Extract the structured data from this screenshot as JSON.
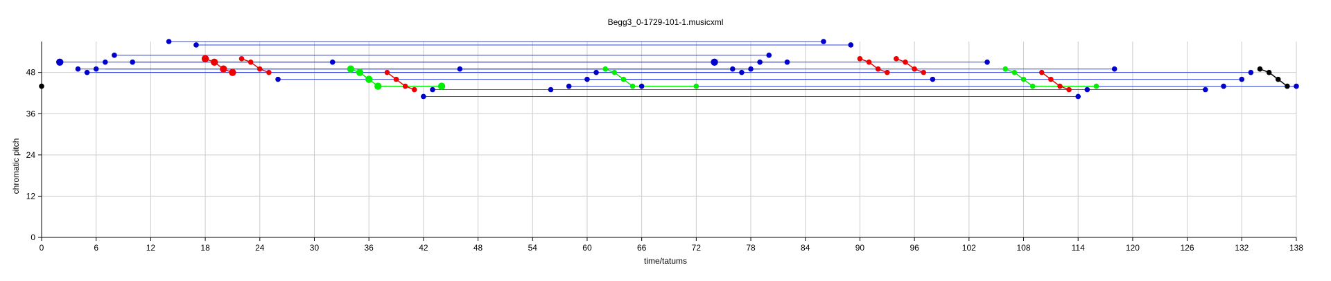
{
  "chart_data": {
    "type": "scatter",
    "title": "Begg3_0-1729-101-1.musicxml",
    "xlabel": "time/tatums",
    "ylabel": "chromatic pitch",
    "xlim": [
      0,
      138
    ],
    "ylim": [
      0,
      57
    ],
    "xticks": [
      0,
      6,
      12,
      18,
      24,
      30,
      36,
      42,
      48,
      54,
      60,
      66,
      72,
      78,
      84,
      90,
      96,
      102,
      108,
      114,
      120,
      126,
      132,
      138
    ],
    "yticks": [
      0,
      12,
      24,
      36,
      48
    ],
    "grid": true,
    "colors": {
      "blue": "#0000cc",
      "red": "#ee0000",
      "green": "#00ee00",
      "black": "#000000",
      "grid": "#cccccc",
      "line_blue": "#3344dd"
    },
    "segments": [
      {
        "color": "blue",
        "x1": 2,
        "x2": 74,
        "y": 51
      },
      {
        "color": "blue",
        "x1": 74,
        "x2": 104,
        "y": 51
      },
      {
        "color": "blue",
        "x1": 14,
        "x2": 86,
        "y": 57
      },
      {
        "color": "blue",
        "x1": 17,
        "x2": 89,
        "y": 56
      },
      {
        "color": "blue",
        "x1": 8,
        "x2": 80,
        "y": 53
      },
      {
        "color": "blue",
        "x1": 10,
        "x2": 82,
        "y": 51
      },
      {
        "color": "blue",
        "x1": 7,
        "x2": 79,
        "y": 49
      },
      {
        "color": "blue",
        "x1": 46,
        "x2": 118,
        "y": 49
      },
      {
        "color": "blue",
        "x1": 4,
        "x2": 76,
        "y": 49
      },
      {
        "color": "blue",
        "x1": 6,
        "x2": 78,
        "y": 48
      },
      {
        "color": "blue",
        "x1": 5,
        "x2": 77,
        "y": 48
      },
      {
        "color": "blue",
        "x1": 61,
        "x2": 133,
        "y": 48
      },
      {
        "color": "blue",
        "x1": 26,
        "x2": 98,
        "y": 46
      },
      {
        "color": "blue",
        "x1": 60,
        "x2": 132,
        "y": 46
      },
      {
        "color": "blue",
        "x1": 58,
        "x2": 130,
        "y": 44
      },
      {
        "color": "blue",
        "x1": 66,
        "x2": 138,
        "y": 44
      },
      {
        "color": "blue",
        "x1": 43,
        "x2": 115,
        "y": 43
      },
      {
        "color": "blue",
        "x1": 56,
        "x2": 128,
        "y": 43
      },
      {
        "color": "blue",
        "x1": 42,
        "x2": 114,
        "y": 41
      },
      {
        "color": "green",
        "x1": 37,
        "x2": 44,
        "y": 44
      },
      {
        "color": "green",
        "x1": 65,
        "x2": 72,
        "y": 44
      },
      {
        "color": "green",
        "x1": 109,
        "x2": 116,
        "y": 44
      }
    ],
    "connectors": [
      {
        "color": "red",
        "points": [
          [
            18,
            52
          ],
          [
            19,
            51
          ],
          [
            20,
            49
          ],
          [
            21,
            48
          ]
        ]
      },
      {
        "color": "red",
        "points": [
          [
            22,
            52
          ],
          [
            23,
            51
          ],
          [
            24,
            49
          ],
          [
            25,
            48
          ]
        ]
      },
      {
        "color": "green",
        "points": [
          [
            34,
            49
          ],
          [
            35,
            48
          ],
          [
            36,
            46
          ],
          [
            37,
            44
          ]
        ]
      },
      {
        "color": "red",
        "points": [
          [
            38,
            48
          ],
          [
            39,
            46
          ],
          [
            40,
            44
          ],
          [
            41,
            43
          ]
        ]
      },
      {
        "color": "green",
        "points": [
          [
            62,
            49
          ],
          [
            63,
            48
          ],
          [
            64,
            46
          ],
          [
            65,
            44
          ]
        ]
      },
      {
        "color": "red",
        "points": [
          [
            90,
            52
          ],
          [
            91,
            51
          ],
          [
            92,
            49
          ],
          [
            93,
            48
          ]
        ]
      },
      {
        "color": "red",
        "points": [
          [
            94,
            52
          ],
          [
            95,
            51
          ],
          [
            96,
            49
          ],
          [
            97,
            48
          ]
        ]
      },
      {
        "color": "green",
        "points": [
          [
            106,
            49
          ],
          [
            107,
            48
          ],
          [
            108,
            46
          ],
          [
            109,
            44
          ]
        ]
      },
      {
        "color": "red",
        "points": [
          [
            110,
            48
          ],
          [
            111,
            46
          ],
          [
            112,
            44
          ],
          [
            113,
            43
          ]
        ]
      },
      {
        "color": "black",
        "points": [
          [
            134,
            49
          ],
          [
            135,
            48
          ],
          [
            136,
            46
          ],
          [
            137,
            44
          ]
        ]
      }
    ],
    "points": [
      {
        "x": 0,
        "y": 44,
        "color": "black",
        "size": "small"
      },
      {
        "x": 2,
        "y": 51,
        "color": "blue",
        "size": "large"
      },
      {
        "x": 4,
        "y": 49,
        "color": "blue",
        "size": "small"
      },
      {
        "x": 5,
        "y": 48,
        "color": "blue",
        "size": "small"
      },
      {
        "x": 6,
        "y": 49,
        "color": "blue",
        "size": "small"
      },
      {
        "x": 7,
        "y": 51,
        "color": "blue",
        "size": "small"
      },
      {
        "x": 8,
        "y": 53,
        "color": "blue",
        "size": "small"
      },
      {
        "x": 10,
        "y": 51,
        "color": "blue",
        "size": "small"
      },
      {
        "x": 14,
        "y": 57,
        "color": "blue",
        "size": "small"
      },
      {
        "x": 17,
        "y": 56,
        "color": "blue",
        "size": "small"
      },
      {
        "x": 18,
        "y": 52,
        "color": "red",
        "size": "large"
      },
      {
        "x": 19,
        "y": 51,
        "color": "red",
        "size": "large"
      },
      {
        "x": 20,
        "y": 49,
        "color": "red",
        "size": "large"
      },
      {
        "x": 21,
        "y": 48,
        "color": "red",
        "size": "large"
      },
      {
        "x": 22,
        "y": 52,
        "color": "red",
        "size": "small"
      },
      {
        "x": 23,
        "y": 51,
        "color": "red",
        "size": "small"
      },
      {
        "x": 24,
        "y": 49,
        "color": "red",
        "size": "small"
      },
      {
        "x": 25,
        "y": 48,
        "color": "red",
        "size": "small"
      },
      {
        "x": 26,
        "y": 46,
        "color": "blue",
        "size": "small"
      },
      {
        "x": 32,
        "y": 51,
        "color": "blue",
        "size": "small"
      },
      {
        "x": 34,
        "y": 49,
        "color": "green",
        "size": "large"
      },
      {
        "x": 35,
        "y": 48,
        "color": "green",
        "size": "large"
      },
      {
        "x": 36,
        "y": 46,
        "color": "green",
        "size": "large"
      },
      {
        "x": 37,
        "y": 44,
        "color": "green",
        "size": "large"
      },
      {
        "x": 38,
        "y": 48,
        "color": "red",
        "size": "small"
      },
      {
        "x": 39,
        "y": 46,
        "color": "red",
        "size": "small"
      },
      {
        "x": 40,
        "y": 44,
        "color": "red",
        "size": "small"
      },
      {
        "x": 41,
        "y": 43,
        "color": "red",
        "size": "small"
      },
      {
        "x": 42,
        "y": 41,
        "color": "blue",
        "size": "small"
      },
      {
        "x": 43,
        "y": 43,
        "color": "blue",
        "size": "small"
      },
      {
        "x": 44,
        "y": 44,
        "color": "green",
        "size": "large"
      },
      {
        "x": 46,
        "y": 49,
        "color": "blue",
        "size": "small"
      },
      {
        "x": 56,
        "y": 43,
        "color": "blue",
        "size": "small"
      },
      {
        "x": 58,
        "y": 44,
        "color": "blue",
        "size": "small"
      },
      {
        "x": 60,
        "y": 46,
        "color": "blue",
        "size": "small"
      },
      {
        "x": 61,
        "y": 48,
        "color": "blue",
        "size": "small"
      },
      {
        "x": 62,
        "y": 49,
        "color": "green",
        "size": "small"
      },
      {
        "x": 63,
        "y": 48,
        "color": "green",
        "size": "small"
      },
      {
        "x": 64,
        "y": 46,
        "color": "green",
        "size": "small"
      },
      {
        "x": 65,
        "y": 44,
        "color": "green",
        "size": "small"
      },
      {
        "x": 66,
        "y": 44,
        "color": "blue",
        "size": "small"
      },
      {
        "x": 72,
        "y": 44,
        "color": "green",
        "size": "small"
      },
      {
        "x": 74,
        "y": 51,
        "color": "blue",
        "size": "large"
      },
      {
        "x": 76,
        "y": 49,
        "color": "blue",
        "size": "small"
      },
      {
        "x": 77,
        "y": 48,
        "color": "blue",
        "size": "small"
      },
      {
        "x": 78,
        "y": 49,
        "color": "blue",
        "size": "small"
      },
      {
        "x": 79,
        "y": 51,
        "color": "blue",
        "size": "small"
      },
      {
        "x": 80,
        "y": 53,
        "color": "blue",
        "size": "small"
      },
      {
        "x": 82,
        "y": 51,
        "color": "blue",
        "size": "small"
      },
      {
        "x": 86,
        "y": 57,
        "color": "blue",
        "size": "small"
      },
      {
        "x": 89,
        "y": 56,
        "color": "blue",
        "size": "small"
      },
      {
        "x": 90,
        "y": 52,
        "color": "red",
        "size": "small"
      },
      {
        "x": 91,
        "y": 51,
        "color": "red",
        "size": "small"
      },
      {
        "x": 92,
        "y": 49,
        "color": "red",
        "size": "small"
      },
      {
        "x": 93,
        "y": 48,
        "color": "red",
        "size": "small"
      },
      {
        "x": 94,
        "y": 52,
        "color": "red",
        "size": "small"
      },
      {
        "x": 95,
        "y": 51,
        "color": "red",
        "size": "small"
      },
      {
        "x": 96,
        "y": 49,
        "color": "red",
        "size": "small"
      },
      {
        "x": 97,
        "y": 48,
        "color": "red",
        "size": "small"
      },
      {
        "x": 98,
        "y": 46,
        "color": "blue",
        "size": "small"
      },
      {
        "x": 104,
        "y": 51,
        "color": "blue",
        "size": "small"
      },
      {
        "x": 106,
        "y": 49,
        "color": "green",
        "size": "small"
      },
      {
        "x": 107,
        "y": 48,
        "color": "green",
        "size": "small"
      },
      {
        "x": 108,
        "y": 46,
        "color": "green",
        "size": "small"
      },
      {
        "x": 109,
        "y": 44,
        "color": "green",
        "size": "small"
      },
      {
        "x": 110,
        "y": 48,
        "color": "red",
        "size": "small"
      },
      {
        "x": 111,
        "y": 46,
        "color": "red",
        "size": "small"
      },
      {
        "x": 112,
        "y": 44,
        "color": "red",
        "size": "small"
      },
      {
        "x": 113,
        "y": 43,
        "color": "red",
        "size": "small"
      },
      {
        "x": 114,
        "y": 41,
        "color": "blue",
        "size": "small"
      },
      {
        "x": 115,
        "y": 43,
        "color": "blue",
        "size": "small"
      },
      {
        "x": 116,
        "y": 44,
        "color": "green",
        "size": "small"
      },
      {
        "x": 118,
        "y": 49,
        "color": "blue",
        "size": "small"
      },
      {
        "x": 128,
        "y": 43,
        "color": "blue",
        "size": "small"
      },
      {
        "x": 130,
        "y": 44,
        "color": "blue",
        "size": "small"
      },
      {
        "x": 132,
        "y": 46,
        "color": "blue",
        "size": "small"
      },
      {
        "x": 133,
        "y": 48,
        "color": "blue",
        "size": "small"
      },
      {
        "x": 134,
        "y": 49,
        "color": "black",
        "size": "small"
      },
      {
        "x": 135,
        "y": 48,
        "color": "black",
        "size": "small"
      },
      {
        "x": 136,
        "y": 46,
        "color": "black",
        "size": "small"
      },
      {
        "x": 137,
        "y": 44,
        "color": "black",
        "size": "small"
      },
      {
        "x": 138,
        "y": 44,
        "color": "blue",
        "size": "small"
      }
    ]
  }
}
